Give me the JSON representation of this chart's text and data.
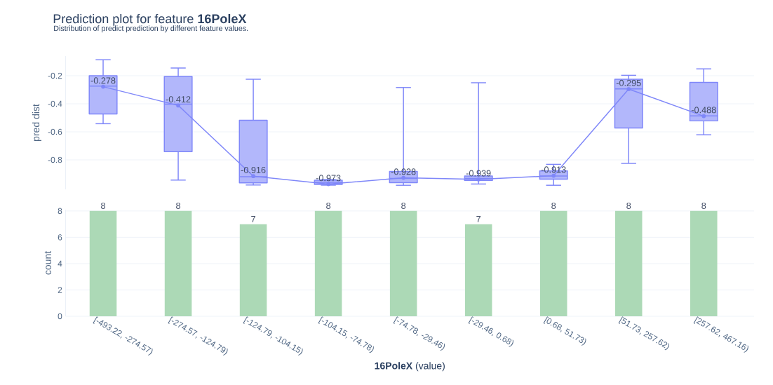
{
  "chart_data": [
    {
      "type": "box",
      "title": "Prediction plot for feature **16PoleX**",
      "subtitle": "Distribution of predict prediction by different feature values.",
      "ylabel": "pred dist",
      "categories": [
        null,
        null,
        null,
        null,
        null,
        null,
        null,
        null,
        null
      ],
      "series": [
        {
          "type": "box",
          "color": "#7f87f9",
          "boxes": [
            {
              "low": -0.542,
              "q1": -0.473,
              "median": -0.274,
              "q3": -0.2,
              "high": -0.086
            },
            {
              "low": -0.944,
              "q1": -0.741,
              "median": -0.403,
              "q3": -0.205,
              "high": -0.145
            },
            {
              "low": -0.979,
              "q1": -0.964,
              "median": -0.92,
              "q3": -0.518,
              "high": -0.225
            },
            {
              "low": -0.98,
              "q1": -0.975,
              "median": -0.96,
              "q3": -0.945,
              "high": -0.94
            },
            {
              "low": -0.981,
              "q1": -0.963,
              "median": -0.933,
              "q3": -0.883,
              "high": -0.284
            },
            {
              "low": -0.972,
              "q1": -0.947,
              "median": -0.933,
              "q3": -0.915,
              "high": -0.25
            },
            {
              "low": -0.981,
              "q1": -0.938,
              "median": -0.915,
              "q3": -0.879,
              "high": -0.832
            },
            {
              "low": -0.825,
              "q1": -0.573,
              "median": -0.294,
              "q3": -0.225,
              "high": -0.197
            },
            {
              "low": -0.621,
              "q1": -0.522,
              "median": -0.486,
              "q3": -0.247,
              "high": -0.151
            }
          ]
        },
        {
          "type": "line",
          "color": "#7f87f9",
          "values": [
            -0.278,
            -0.412,
            -0.916,
            -0.973,
            -0.928,
            -0.939,
            -0.913,
            -0.295,
            -0.488
          ],
          "value_labels": [
            "-0.278",
            "-0.412",
            "-0.916",
            "-0.973",
            "-0.928",
            "-0.939",
            "-0.913",
            "-0.295",
            "-0.488"
          ]
        }
      ],
      "marker": "circle",
      "ylim": [
        -1.01,
        -0.06
      ],
      "yticks": [
        -0.8,
        -0.6,
        -0.4,
        -0.2
      ],
      "grid": "y",
      "tick_labels": "y"
    },
    {
      "type": "bar",
      "ylabel": "count",
      "xlabel": "**16PoleX** (value)",
      "categories": [
        "[-493.22, -274.57)",
        "[-274.57, -124.79)",
        "[-124.79, -104.15)",
        "[-104.15, -74.78)",
        "[-74.78, -29.46)",
        "[-29.46, 0.68)",
        "[0.68, 51.73)",
        "[51.73, 257.62)",
        "[257.62, 467.16)"
      ],
      "values": [
        8,
        8,
        7,
        8,
        8,
        7,
        8,
        8,
        8
      ],
      "color": "#acd9b6",
      "data_labels": true,
      "ylim": [
        0,
        8.1
      ],
      "yticks": [
        0,
        2,
        4,
        6,
        8
      ],
      "grid": "y"
    }
  ]
}
